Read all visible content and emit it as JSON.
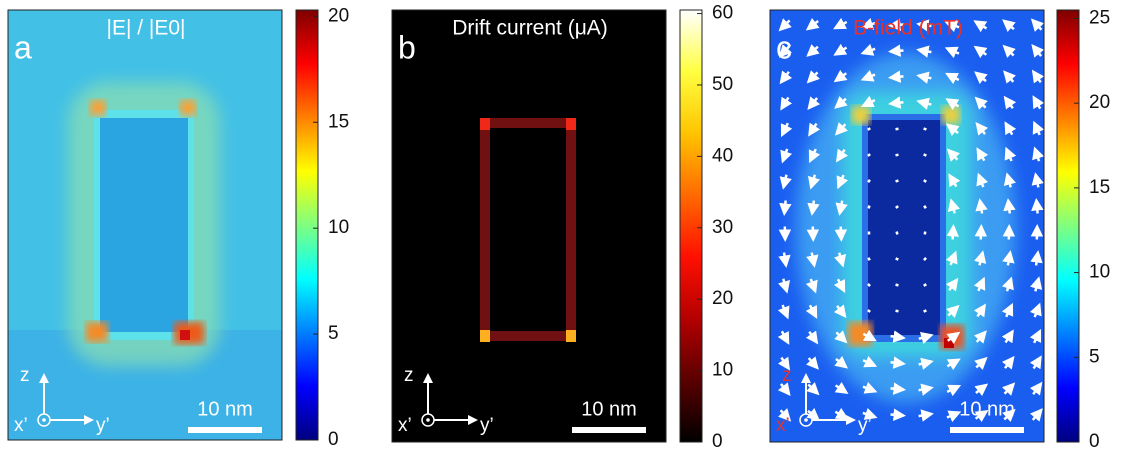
{
  "panels": [
    {
      "letter": "a",
      "title": "|E| / |E0|",
      "title_color": "#ffffff",
      "axis_color": "#ffffff",
      "scale_bar": "10 nm",
      "axis_labels": {
        "up": "z",
        "out": "x’",
        "right": "y’"
      },
      "colorbar": {
        "colormap": "jet",
        "lim": [
          0,
          20.3
        ],
        "ticks": [
          0,
          5,
          10,
          15,
          20
        ]
      }
    },
    {
      "letter": "b",
      "title": "Drift current (μA)",
      "title_color": "#ffffff",
      "axis_color": "#ffffff",
      "scale_bar": "10 nm",
      "axis_labels": {
        "up": "z",
        "out": "x’",
        "right": "y’"
      },
      "colorbar": {
        "colormap": "hot",
        "lim": [
          0,
          60.5
        ],
        "ticks": [
          0,
          10,
          20,
          30,
          40,
          50,
          60
        ]
      }
    },
    {
      "letter": "c",
      "title": "B-field (mT)",
      "title_color": "#e8312a",
      "axis_color": "#e8312a",
      "scale_bar": "10 nm",
      "axis_labels": {
        "up": "z",
        "out": "x’",
        "right": "y’"
      },
      "colorbar": {
        "colormap": "jet",
        "lim": [
          0,
          25.5
        ],
        "ticks": [
          0,
          5,
          10,
          15,
          20,
          25
        ]
      }
    }
  ]
}
